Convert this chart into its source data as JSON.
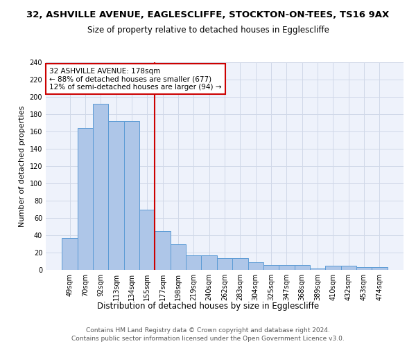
{
  "title1": "32, ASHVILLE AVENUE, EAGLESCLIFFE, STOCKTON-ON-TEES, TS16 9AX",
  "title2": "Size of property relative to detached houses in Egglescliffe",
  "xlabel": "Distribution of detached houses by size in Egglescliffe",
  "ylabel": "Number of detached properties",
  "categories": [
    "49sqm",
    "70sqm",
    "92sqm",
    "113sqm",
    "134sqm",
    "155sqm",
    "177sqm",
    "198sqm",
    "219sqm",
    "240sqm",
    "262sqm",
    "283sqm",
    "304sqm",
    "325sqm",
    "347sqm",
    "368sqm",
    "389sqm",
    "410sqm",
    "432sqm",
    "453sqm",
    "474sqm"
  ],
  "values": [
    37,
    164,
    192,
    172,
    172,
    70,
    45,
    30,
    17,
    17,
    14,
    14,
    9,
    6,
    6,
    6,
    2,
    5,
    5,
    3,
    3
  ],
  "bar_color": "#aec6e8",
  "bar_edge_color": "#5b9bd5",
  "annotation_line1": "32 ASHVILLE AVENUE: 178sqm",
  "annotation_line2": "← 88% of detached houses are smaller (677)",
  "annotation_line3": "12% of semi-detached houses are larger (94) →",
  "annotation_box_color": "#ffffff",
  "annotation_box_edge": "#cc0000",
  "footer1": "Contains HM Land Registry data © Crown copyright and database right 2024.",
  "footer2": "Contains public sector information licensed under the Open Government Licence v3.0.",
  "ylim": [
    0,
    240
  ],
  "yticks": [
    0,
    20,
    40,
    60,
    80,
    100,
    120,
    140,
    160,
    180,
    200,
    220,
    240
  ],
  "grid_color": "#d0d8e8",
  "background_color": "#eef2fb",
  "title1_fontsize": 9.5,
  "title2_fontsize": 8.5,
  "xlabel_fontsize": 8.5,
  "ylabel_fontsize": 8,
  "tick_fontsize": 7,
  "annotation_fontsize": 7.5,
  "footer_fontsize": 6.5
}
